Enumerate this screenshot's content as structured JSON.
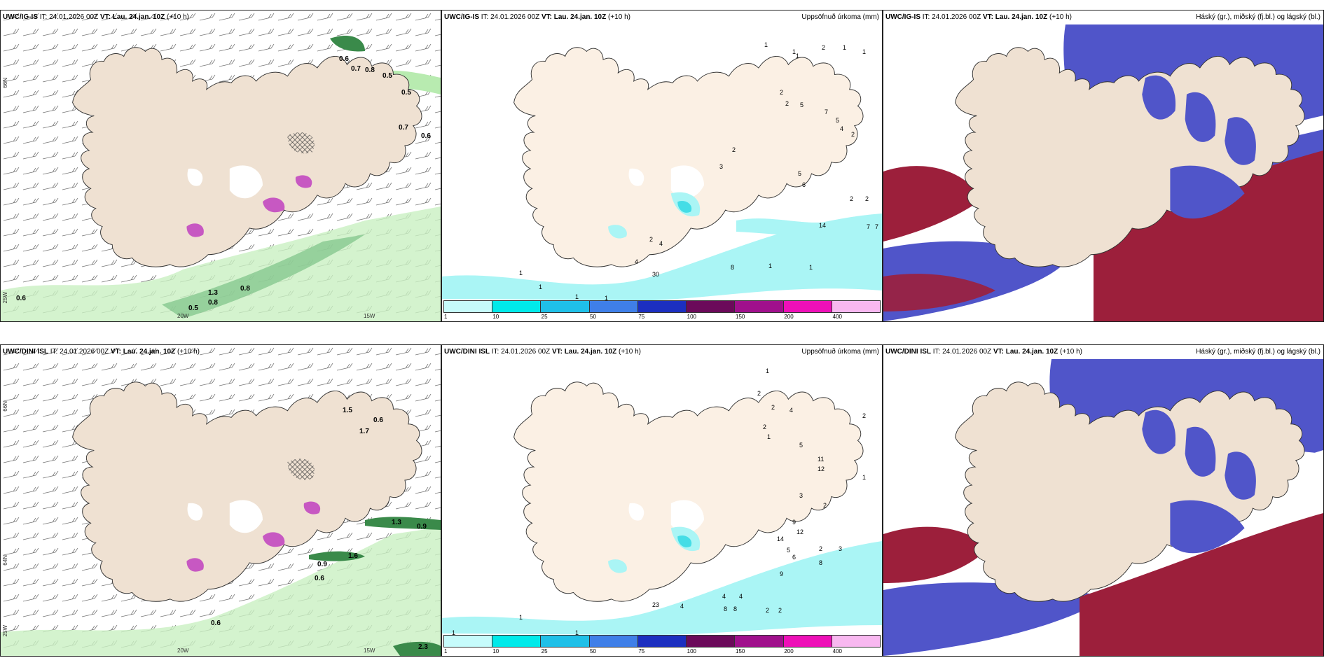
{
  "colors": {
    "land": "#efe1d2",
    "coast": "#333333",
    "precip_light": "#aaf5f5",
    "precip_mid": "#44dde6",
    "mid_cloud": "#5055c9",
    "low_cloud": "#9c1f3b",
    "wind_green": "#b8ebb0",
    "dark_green": "#3a8a4a",
    "magenta": "#c040c0"
  },
  "rows": [
    {
      "model_label": "UWC/IG-IS",
      "it_label": "IT: 24.01.2026 00Z",
      "vt_label": "VT: Lau. 24.jan. 10Z",
      "lead_label": "(+10 h)",
      "wind_values": [
        "0.6",
        "0.7",
        "0.8",
        "0.5",
        "0.5",
        "0.7",
        "0.6",
        "0.6",
        "0.5",
        "0.8",
        "0.8",
        "1.3"
      ],
      "precip_values": [
        "1",
        "1",
        "2",
        "1",
        "1",
        "1",
        "2",
        "2",
        "5",
        "7",
        "5",
        "4",
        "2",
        "3",
        "2",
        "5",
        "6",
        "2",
        "14",
        "7",
        "7",
        "2",
        "8",
        "1",
        "1",
        "30",
        "4",
        "4",
        "2",
        "1",
        "1",
        "1",
        "1"
      ]
    },
    {
      "model_label": "UWC/DINI ISL",
      "it_label": "IT: 24.01.2026 00Z",
      "vt_label": "VT: Lau. 24.jan. 10Z",
      "lead_label": "(+10 h)",
      "wind_values": [
        "1.5",
        "0.6",
        "1.7",
        "1.3",
        "0.9",
        "1.6",
        "0.6",
        "0.9",
        "0.6",
        "2.3"
      ],
      "precip_values": [
        "1",
        "2",
        "2",
        "4",
        "2",
        "1",
        "2",
        "5",
        "11",
        "12",
        "1",
        "3",
        "2",
        "9",
        "12",
        "14",
        "5",
        "6",
        "8",
        "9",
        "2",
        "3",
        "4",
        "4",
        "8",
        "8",
        "2",
        "2",
        "23",
        "4",
        "1",
        "1",
        "1"
      ]
    }
  ],
  "titles": {
    "precip": "Uppsöfnuð úrkoma (mm)",
    "clouds": "Háský (gr.), miðský (fj.bl.) og lágský (bl.)"
  },
  "axis_labels": {
    "lat66": "66N",
    "lat64": "64N",
    "lon20": "20W",
    "lon15": "15W",
    "lon25": "25W"
  },
  "legend": {
    "thresholds": [
      "1",
      "10",
      "25",
      "50",
      "75",
      "100",
      "150",
      "200",
      "400"
    ],
    "colors": [
      "#c6fbfb",
      "#00eaea",
      "#1fc0e8",
      "#3f7fe8",
      "#1c2fc0",
      "#6b0a5a",
      "#a0108c",
      "#ee10b8",
      "#f8b8f0"
    ]
  }
}
